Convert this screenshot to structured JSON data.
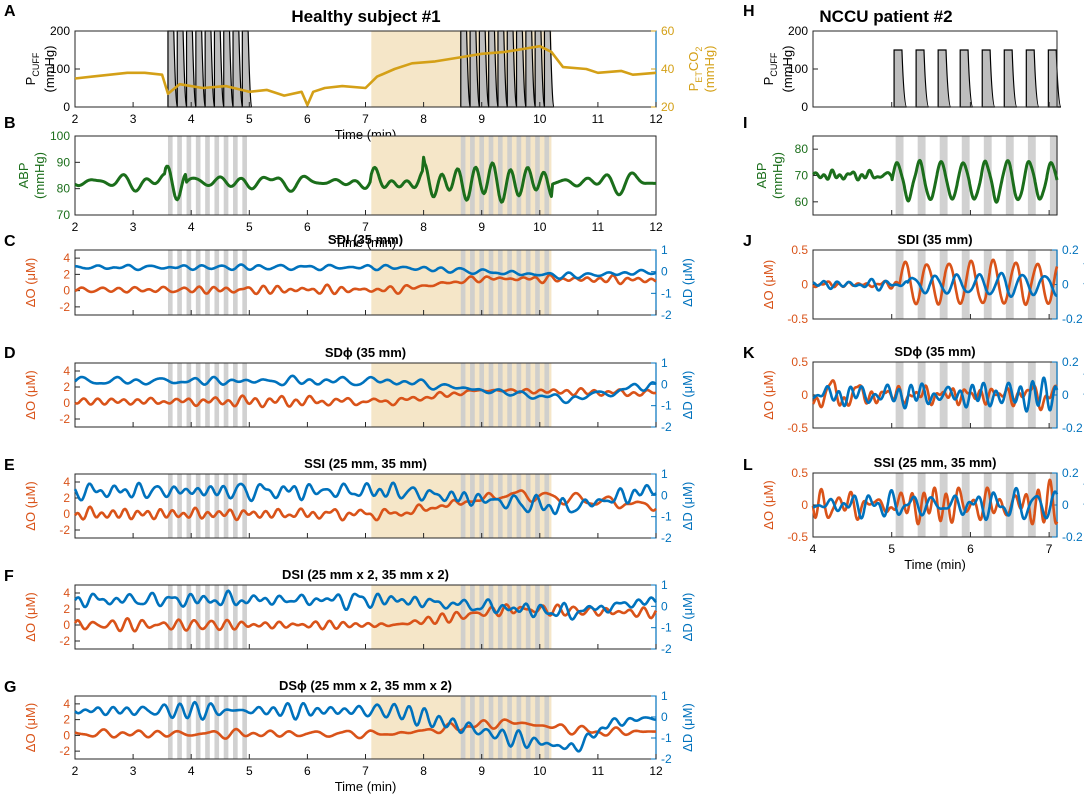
{
  "figure": {
    "left_title": "Healthy subject #1",
    "right_title": "NCCU patient #2",
    "xlabel": "Time (min)"
  },
  "colors": {
    "cuff_fill": "#bdbdbd",
    "cuff_line": "#000000",
    "co2": "#d4a017",
    "abp": "#1b6e1b",
    "dO": "#d95319",
    "dD": "#0072bd",
    "hypercapnia": "#f5e6c8",
    "cuff_band": "#cccccc"
  },
  "chart_data": [
    {
      "panel": "A",
      "type": "line",
      "column": "left",
      "title": "",
      "ylabel": [
        "P",
        "CUFF",
        "(mmHg)"
      ],
      "ylim": [
        0,
        200
      ],
      "yticks": [
        "0",
        "100",
        "200"
      ],
      "y2label": [
        "P",
        "ET",
        "CO",
        "2",
        "(mmHg)"
      ],
      "y2lim": [
        20,
        60
      ],
      "y2ticks": [
        "20",
        "40",
        "60"
      ],
      "xlim": [
        2,
        12
      ],
      "xticks": [
        "2",
        "3",
        "4",
        "5",
        "6",
        "7",
        "8",
        "9",
        "10",
        "11",
        "12"
      ],
      "cuff_inflations_min": [
        3.62,
        3.78,
        3.94,
        4.1,
        4.26,
        4.42,
        4.58,
        4.74,
        4.9,
        8.66,
        8.82,
        8.98,
        9.14,
        9.3,
        9.46,
        9.62,
        9.78,
        9.94,
        10.1
      ],
      "cuff_pressure_mmHg": 200,
      "hypercapnia_min": [
        7.1,
        10.2
      ],
      "series": [
        {
          "name": "PETCO2",
          "color_key": "co2",
          "axis": "right",
          "x": [
            2,
            2.3,
            2.6,
            2.9,
            3.2,
            3.5,
            3.6,
            3.8,
            4.2,
            4.6,
            5,
            5.3,
            5.6,
            5.9,
            6,
            6.1,
            6.3,
            6.6,
            7,
            7.2,
            7.5,
            7.8,
            8.2,
            8.6,
            9,
            9.4,
            9.8,
            10,
            10.2,
            10.4,
            10.8,
            11,
            11.4,
            11.6,
            12
          ],
          "values": [
            35,
            36,
            37,
            38,
            38,
            37,
            27,
            32,
            30,
            31,
            28,
            29,
            26,
            28,
            21,
            28,
            30,
            31,
            30,
            36,
            40,
            43,
            44,
            46,
            48,
            49,
            51,
            52,
            49,
            41,
            40,
            38,
            39,
            37,
            38
          ]
        }
      ]
    },
    {
      "panel": "B",
      "type": "line",
      "column": "left",
      "title": "",
      "ylabel": [
        "ABP",
        "(mmHg)"
      ],
      "ylim": [
        70,
        100
      ],
      "yticks": [
        "70",
        "80",
        "90",
        "100"
      ],
      "xlim": [
        2,
        12
      ],
      "xticks": [
        "2",
        "3",
        "4",
        "5",
        "6",
        "7",
        "8",
        "9",
        "10",
        "11",
        "12"
      ],
      "hypercapnia_min": [
        7.1,
        10.2
      ],
      "cuff_bands_min": [
        3.6,
        3.76,
        3.92,
        4.08,
        4.24,
        4.4,
        4.56,
        4.72,
        4.88,
        8.64,
        8.8,
        8.96,
        9.12,
        9.28,
        9.44,
        9.6,
        9.76,
        9.92,
        10.08
      ],
      "band_width_min": 0.08,
      "series": [
        {
          "name": "ABP",
          "color_key": "abp",
          "base": 82.5,
          "amp": 3,
          "seed": 7,
          "freq": 1.5,
          "bursts": [
            {
              "t0": 3.55,
              "t1": 3.9,
              "amp": 7
            },
            {
              "t0": 8.0,
              "t1": 10.2,
              "amp": 10
            },
            {
              "t0": 7.1,
              "t1": 8.0,
              "amp": 5
            }
          ]
        }
      ]
    },
    {
      "panel": "C",
      "type": "line",
      "column": "left",
      "title": "SDI (35 mm)",
      "ylabel": [
        "ΔO (μM)"
      ],
      "ylim": [
        -3,
        5
      ],
      "yticks": [
        "-2",
        "0",
        "2",
        "4"
      ],
      "y2label": [
        "ΔD (μM)"
      ],
      "y2lim": [
        -2,
        1
      ],
      "y2ticks": [
        "-2",
        "-1",
        "0",
        "1"
      ],
      "xlim": [
        2,
        12
      ],
      "hypercapnia_min": [
        7.1,
        10.2
      ],
      "cuff_bands_min": [
        3.6,
        3.76,
        3.92,
        4.08,
        4.24,
        4.4,
        4.56,
        4.72,
        4.88,
        8.64,
        8.8,
        8.96,
        9.12,
        9.28,
        9.44,
        9.6,
        9.76,
        9.92,
        10.08
      ],
      "band_width_min": 0.08,
      "series": [
        {
          "name": "dO",
          "color_key": "dO",
          "base": 0.1,
          "amp": 0.35,
          "seed": 3,
          "freq": 2.2,
          "trend": [
            {
              "t": 7.5,
              "v": 0
            },
            {
              "t": 9,
              "v": 1.4
            },
            {
              "t": 12,
              "v": 1.2
            }
          ]
        },
        {
          "name": "dD",
          "color_key": "dD",
          "axis": "right",
          "base": 0.0,
          "amp": 0.12,
          "seed": 11,
          "freq": 2.0,
          "trend": [
            {
              "t": 7.5,
              "v": 0.2
            },
            {
              "t": 10.5,
              "v": -0.2
            },
            {
              "t": 12,
              "v": 0
            }
          ]
        }
      ]
    },
    {
      "panel": "D",
      "type": "line",
      "column": "left",
      "title": "SDϕ (35 mm)",
      "ylabel": [
        "ΔO (μM)"
      ],
      "ylim": [
        -3,
        5
      ],
      "yticks": [
        "-2",
        "0",
        "2",
        "4"
      ],
      "y2label": [
        "ΔD (μM)"
      ],
      "y2lim": [
        -2,
        1
      ],
      "y2ticks": [
        "-2",
        "-1",
        "0",
        "1"
      ],
      "xlim": [
        2,
        12
      ],
      "hypercapnia_min": [
        7.1,
        10.2
      ],
      "cuff_bands_min": [
        3.6,
        3.76,
        3.92,
        4.08,
        4.24,
        4.4,
        4.56,
        4.72,
        4.88,
        8.64,
        8.8,
        8.96,
        9.12,
        9.28,
        9.44,
        9.6,
        9.76,
        9.92,
        10.08
      ],
      "band_width_min": 0.08,
      "series": [
        {
          "name": "dO",
          "color_key": "dO",
          "base": 0.2,
          "amp": 0.45,
          "seed": 5,
          "freq": 2.2,
          "trend": [
            {
              "t": 7.5,
              "v": 0
            },
            {
              "t": 9,
              "v": 1.4
            },
            {
              "t": 12,
              "v": 1.0
            }
          ]
        },
        {
          "name": "dD",
          "color_key": "dD",
          "axis": "right",
          "base": 0.0,
          "amp": 0.2,
          "seed": 13,
          "freq": 2.0,
          "trend": [
            {
              "t": 7.5,
              "v": 0.15
            },
            {
              "t": 10.5,
              "v": -0.7
            },
            {
              "t": 12,
              "v": 0
            }
          ]
        }
      ]
    },
    {
      "panel": "E",
      "type": "line",
      "column": "left",
      "title": "SSI (25 mm, 35 mm)",
      "ylabel": [
        "ΔO (μM)"
      ],
      "ylim": [
        -3,
        5
      ],
      "yticks": [
        "-2",
        "0",
        "2",
        "4"
      ],
      "y2label": [
        "ΔD (μM)"
      ],
      "y2lim": [
        -2,
        1
      ],
      "y2ticks": [
        "-2",
        "-1",
        "0",
        "1"
      ],
      "xlim": [
        2,
        12
      ],
      "hypercapnia_min": [
        7.1,
        10.2
      ],
      "cuff_bands_min": [
        3.6,
        3.76,
        3.92,
        4.08,
        4.24,
        4.4,
        4.56,
        4.72,
        4.88,
        8.64,
        8.8,
        8.96,
        9.12,
        9.28,
        9.44,
        9.6,
        9.76,
        9.92,
        10.08
      ],
      "band_width_min": 0.08,
      "series": [
        {
          "name": "dO",
          "color_key": "dO",
          "base": 0.0,
          "amp": 0.8,
          "seed": 17,
          "freq": 2.4,
          "trend": [
            {
              "t": 7.5,
              "v": 0
            },
            {
              "t": 9.5,
              "v": 2.5
            },
            {
              "t": 12,
              "v": 1.0
            }
          ]
        },
        {
          "name": "dD",
          "color_key": "dD",
          "axis": "right",
          "base": 0.0,
          "amp": 0.3,
          "seed": 19,
          "freq": 2.2,
          "trend": [
            {
              "t": 7.5,
              "v": 0.2
            },
            {
              "t": 10.5,
              "v": -0.6
            },
            {
              "t": 12,
              "v": 0.3
            }
          ]
        }
      ]
    },
    {
      "panel": "F",
      "type": "line",
      "column": "left",
      "title": "DSI (25 mm x 2, 35 mm x 2)",
      "ylabel": [
        "ΔO (μM)"
      ],
      "ylim": [
        -3,
        5
      ],
      "yticks": [
        "-2",
        "0",
        "2",
        "4"
      ],
      "y2label": [
        "ΔD (μM)"
      ],
      "y2lim": [
        -2,
        1
      ],
      "y2ticks": [
        "-2",
        "-1",
        "0",
        "1"
      ],
      "xlim": [
        2,
        12
      ],
      "hypercapnia_min": [
        7.1,
        10.2
      ],
      "cuff_bands_min": [
        3.6,
        3.76,
        3.92,
        4.08,
        4.24,
        4.4,
        4.56,
        4.72,
        4.88,
        8.64,
        8.8,
        8.96,
        9.12,
        9.28,
        9.44,
        9.6,
        9.76,
        9.92,
        10.08
      ],
      "band_width_min": 0.08,
      "series": [
        {
          "name": "dO",
          "color_key": "dO",
          "base": 0.0,
          "amp": 0.55,
          "seed": 23,
          "freq": 2.2,
          "trend": [
            {
              "t": 7.5,
              "v": 0
            },
            {
              "t": 9.5,
              "v": 2.0
            },
            {
              "t": 12,
              "v": 1.5
            }
          ]
        },
        {
          "name": "dD",
          "color_key": "dD",
          "axis": "right",
          "base": 0.1,
          "amp": 0.25,
          "seed": 29,
          "freq": 2.2,
          "trend": [
            {
              "t": 7.5,
              "v": 0.2
            },
            {
              "t": 10.5,
              "v": -0.4
            },
            {
              "t": 12,
              "v": 0.2
            }
          ]
        }
      ]
    },
    {
      "panel": "G",
      "type": "line",
      "column": "left",
      "title": "DSϕ (25 mm x 2, 35 mm x 2)",
      "ylabel": [
        "ΔO (μM)"
      ],
      "ylim": [
        -3,
        5
      ],
      "yticks": [
        "-2",
        "0",
        "2",
        "4"
      ],
      "y2label": [
        "ΔD (μM)"
      ],
      "y2lim": [
        -2,
        1
      ],
      "y2ticks": [
        "-2",
        "-1",
        "0",
        "1"
      ],
      "xlim": [
        2,
        12
      ],
      "xticks": [
        "2",
        "3",
        "4",
        "5",
        "6",
        "7",
        "8",
        "9",
        "10",
        "11",
        "12"
      ],
      "hypercapnia_min": [
        7.1,
        10.2
      ],
      "cuff_bands_min": [
        3.6,
        3.76,
        3.92,
        4.08,
        4.24,
        4.4,
        4.56,
        4.72,
        4.88,
        8.64,
        8.8,
        8.96,
        9.12,
        9.28,
        9.44,
        9.6,
        9.76,
        9.92,
        10.08
      ],
      "band_width_min": 0.08,
      "series": [
        {
          "name": "dO",
          "color_key": "dO",
          "base": 0.2,
          "amp": 0.35,
          "seed": 31,
          "freq": 2.0,
          "trend": [
            {
              "t": 7.5,
              "v": 0
            },
            {
              "t": 9.5,
              "v": 1.5
            },
            {
              "t": 11,
              "v": 0.2
            },
            {
              "t": 12,
              "v": 0.3
            }
          ]
        },
        {
          "name": "dD",
          "color_key": "dD",
          "axis": "right",
          "base": 0.1,
          "amp": 0.25,
          "seed": 37,
          "freq": 2.0,
          "trend": [
            {
              "t": 7.5,
              "v": 0.2
            },
            {
              "t": 9.5,
              "v": -1.1
            },
            {
              "t": 10.6,
              "v": -1.6
            },
            {
              "t": 11.2,
              "v": -0.4
            },
            {
              "t": 12,
              "v": -0.1
            }
          ]
        }
      ]
    },
    {
      "panel": "H",
      "type": "line",
      "column": "right",
      "title": "",
      "ylabel": [
        "P",
        "CUFF",
        "(mmHg)"
      ],
      "ylim": [
        0,
        200
      ],
      "yticks": [
        "0",
        "100",
        "200"
      ],
      "xlim": [
        4,
        7.1
      ],
      "cuff_inflations_min": [
        5.05,
        5.33,
        5.61,
        5.89,
        6.17,
        6.45,
        6.73,
        7.01
      ],
      "cuff_pressure_mmHg": 150,
      "series": []
    },
    {
      "panel": "I",
      "type": "line",
      "column": "right",
      "title": "",
      "ylabel": [
        "ABP",
        "(mmHg)"
      ],
      "ylim": [
        55,
        85
      ],
      "yticks": [
        "60",
        "70",
        "80"
      ],
      "xlim": [
        4,
        7.1
      ],
      "cuff_bands_min": [
        5.05,
        5.33,
        5.61,
        5.89,
        6.17,
        6.45,
        6.73,
        7.01
      ],
      "band_width_min": 0.1,
      "series": [
        {
          "name": "ABP",
          "color_key": "abp",
          "base": 70,
          "amp": 1.5,
          "seed": 41,
          "freq": 5,
          "bursts": [
            {
              "t0": 5.0,
              "t1": 7.1,
              "amp": 0
            }
          ],
          "osc": {
            "t0": 5.0,
            "period": 0.28,
            "amp": 7,
            "center": 68
          }
        }
      ]
    },
    {
      "panel": "J",
      "type": "line",
      "column": "right",
      "title": "SDI (35 mm)",
      "ylabel": [
        "ΔO (μM)"
      ],
      "ylim": [
        -0.5,
        0.5
      ],
      "yticks": [
        "-0.5",
        "0",
        "0.5"
      ],
      "y2label": [
        "ΔD (μM)"
      ],
      "y2lim": [
        -0.2,
        0.2
      ],
      "y2ticks": [
        "-0.2",
        "0",
        "0.2"
      ],
      "xlim": [
        4,
        7.1
      ],
      "cuff_bands_min": [
        5.05,
        5.33,
        5.61,
        5.89,
        6.17,
        6.45,
        6.73,
        7.01
      ],
      "band_width_min": 0.1,
      "series": [
        {
          "name": "dO",
          "color_key": "dO",
          "base": 0.0,
          "amp": 0.05,
          "seed": 43,
          "freq": 4,
          "osc": {
            "t0": 5.1,
            "period": 0.28,
            "amp": 0.3,
            "center": 0.02
          }
        },
        {
          "name": "dD",
          "color_key": "dD",
          "axis": "right",
          "base": 0.0,
          "amp": 0.03,
          "seed": 47,
          "freq": 3,
          "osc": {
            "t0": 5.2,
            "period": 0.28,
            "amp": 0.05,
            "center": 0.0
          }
        }
      ]
    },
    {
      "panel": "K",
      "type": "line",
      "column": "right",
      "title": "SDϕ (35 mm)",
      "ylabel": [
        "ΔO (μM)"
      ],
      "ylim": [
        -0.5,
        0.5
      ],
      "yticks": [
        "-0.5",
        "0",
        "0.5"
      ],
      "y2label": [
        "ΔD (μM)"
      ],
      "y2lim": [
        -0.2,
        0.2
      ],
      "y2ticks": [
        "-0.2",
        "0",
        "0.2"
      ],
      "xlim": [
        4,
        7.1
      ],
      "cuff_bands_min": [
        5.05,
        5.33,
        5.61,
        5.89,
        6.17,
        6.45,
        6.73,
        7.01
      ],
      "band_width_min": 0.1,
      "series": [
        {
          "name": "dO",
          "color_key": "dO",
          "base": 0.0,
          "amp": 0.18,
          "seed": 53,
          "freq": 4
        },
        {
          "name": "dD",
          "color_key": "dD",
          "axis": "right",
          "base": 0.0,
          "amp": 0.08,
          "seed": 59,
          "freq": 4
        }
      ]
    },
    {
      "panel": "L",
      "type": "line",
      "column": "right",
      "title": "SSI (25 mm, 35 mm)",
      "ylabel": [
        "ΔO (μM)"
      ],
      "ylim": [
        -0.5,
        0.5
      ],
      "yticks": [
        "-0.5",
        "0",
        "0.5"
      ],
      "y2label": [
        "ΔD (μM)"
      ],
      "y2lim": [
        -0.2,
        0.2
      ],
      "y2ticks": [
        "-0.2",
        "0",
        "0.2"
      ],
      "xlim": [
        4,
        7.1
      ],
      "xticks": [
        "4",
        "5",
        "6",
        "7"
      ],
      "cuff_bands_min": [
        5.05,
        5.33,
        5.61,
        5.89,
        6.17,
        6.45,
        6.73,
        7.01
      ],
      "band_width_min": 0.1,
      "series": [
        {
          "name": "dO",
          "color_key": "dO",
          "base": 0.0,
          "amp": 0.2,
          "seed": 61,
          "freq": 4
        },
        {
          "name": "dD",
          "color_key": "dD",
          "axis": "right",
          "base": 0.0,
          "amp": 0.1,
          "seed": 67,
          "freq": 4
        }
      ]
    }
  ]
}
